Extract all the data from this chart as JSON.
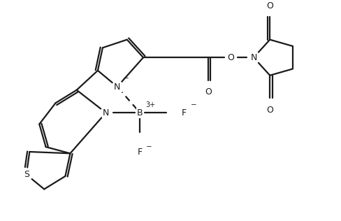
{
  "bg_color": "#ffffff",
  "line_color": "#1a1a1a",
  "line_width": 1.6,
  "figsize": [
    4.89,
    3.16
  ],
  "dpi": 100,
  "xlim": [
    0,
    10
  ],
  "ylim": [
    0,
    6.5
  ]
}
